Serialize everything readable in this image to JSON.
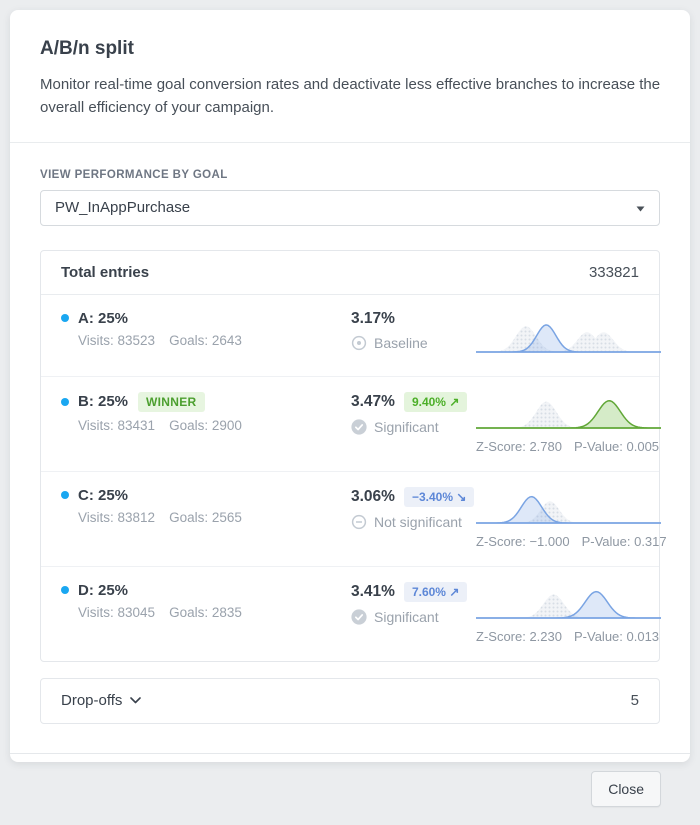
{
  "modal": {
    "title": "A/B/n split",
    "description": "Monitor real-time goal conversion rates and deactivate less effective branches to increase the overall efficiency of your campaign.",
    "goal_label": "VIEW PERFORMANCE BY GOAL",
    "goal_value": "PW_InAppPurchase",
    "close_label": "Close"
  },
  "totals": {
    "label": "Total entries",
    "value": "333821"
  },
  "dropoffs": {
    "label": "Drop-offs",
    "value": "5"
  },
  "branches": [
    {
      "name": "A: 25%",
      "winner": null,
      "visits": "Visits: 83523",
      "goals": "Goals: 2643",
      "rate": "3.17%",
      "change": null,
      "status": "Baseline",
      "status_icon": "baseline",
      "stats": null,
      "spark": {
        "baseline": "blue",
        "curves": [
          {
            "tone": "gray",
            "c": 0.27,
            "s": 0.055,
            "h": 0.78
          },
          {
            "tone": "gray",
            "c": 0.6,
            "s": 0.052,
            "h": 0.6
          },
          {
            "tone": "gray",
            "c": 0.69,
            "s": 0.052,
            "h": 0.6
          },
          {
            "tone": "blue",
            "c": 0.38,
            "s": 0.052,
            "h": 0.82
          }
        ]
      }
    },
    {
      "name": "B: 25%",
      "winner": "WINNER",
      "visits": "Visits: 83431",
      "goals": "Goals: 2900",
      "rate": "3.47%",
      "change": {
        "text": "9.40% ↗",
        "tone": "green"
      },
      "status": "Significant",
      "status_icon": "check",
      "stats": {
        "z": "Z-Score: 2.780",
        "p": "P-Value: 0.005"
      },
      "spark": {
        "baseline": "green",
        "curves": [
          {
            "tone": "gray",
            "c": 0.38,
            "s": 0.055,
            "h": 0.85
          },
          {
            "tone": "green",
            "c": 0.72,
            "s": 0.06,
            "h": 0.88
          }
        ]
      }
    },
    {
      "name": "C: 25%",
      "winner": null,
      "visits": "Visits: 83812",
      "goals": "Goals: 2565",
      "rate": "3.06%",
      "change": {
        "text": "−3.40% ↘",
        "tone": "blue"
      },
      "status": "Not significant",
      "status_icon": "minus",
      "stats": {
        "z": "Z-Score: −1.000",
        "p": "P-Value: 0.317"
      },
      "spark": {
        "baseline": "blue",
        "curves": [
          {
            "tone": "gray",
            "c": 0.4,
            "s": 0.05,
            "h": 0.7
          },
          {
            "tone": "blue",
            "c": 0.3,
            "s": 0.055,
            "h": 0.85
          }
        ]
      }
    },
    {
      "name": "D: 25%",
      "winner": null,
      "visits": "Visits: 83045",
      "goals": "Goals: 2835",
      "rate": "3.41%",
      "change": {
        "text": "7.60% ↗",
        "tone": "blue"
      },
      "status": "Significant",
      "status_icon": "check",
      "stats": {
        "z": "Z-Score: 2.230",
        "p": "P-Value: 0.013"
      },
      "spark": {
        "baseline": "blue",
        "curves": [
          {
            "tone": "gray",
            "c": 0.42,
            "s": 0.055,
            "h": 0.76
          },
          {
            "tone": "blue",
            "c": 0.65,
            "s": 0.06,
            "h": 0.85
          }
        ]
      }
    }
  ],
  "colors": {
    "accent_blue": "#1aa7f1",
    "spark_blue": "#7aa4e3",
    "spark_green": "#61a737",
    "badge_green_bg": "#e4f4dc",
    "badge_green_text": "#4caf28",
    "badge_blue_bg": "#ecf0f8",
    "badge_blue_text": "#5d87d7",
    "winner_bg": "#e7f5e0",
    "winner_text": "#4c9f2f"
  }
}
